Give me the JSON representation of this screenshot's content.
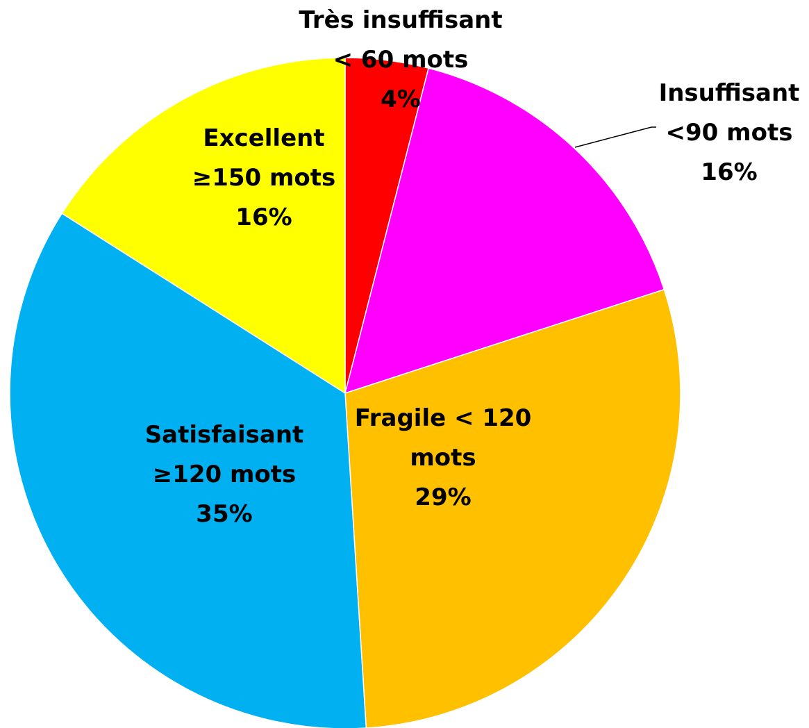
{
  "chart_data": {
    "type": "pie",
    "categories": [
      "Très insuffisant\n< 60 mots",
      "Insuffisant\n<90 mots",
      "Fragile < 120\nmots",
      "Satisfaisant\n≥120 mots",
      "Excellent\n≥150 mots"
    ],
    "values": [
      4,
      16,
      29,
      35,
      16
    ],
    "value_labels": [
      "4%",
      "16%",
      "29%",
      "35%",
      "16%"
    ],
    "colors": [
      "#ff0000",
      "#ff00ff",
      "#ffc000",
      "#00b0f0",
      "#ffff00"
    ]
  }
}
